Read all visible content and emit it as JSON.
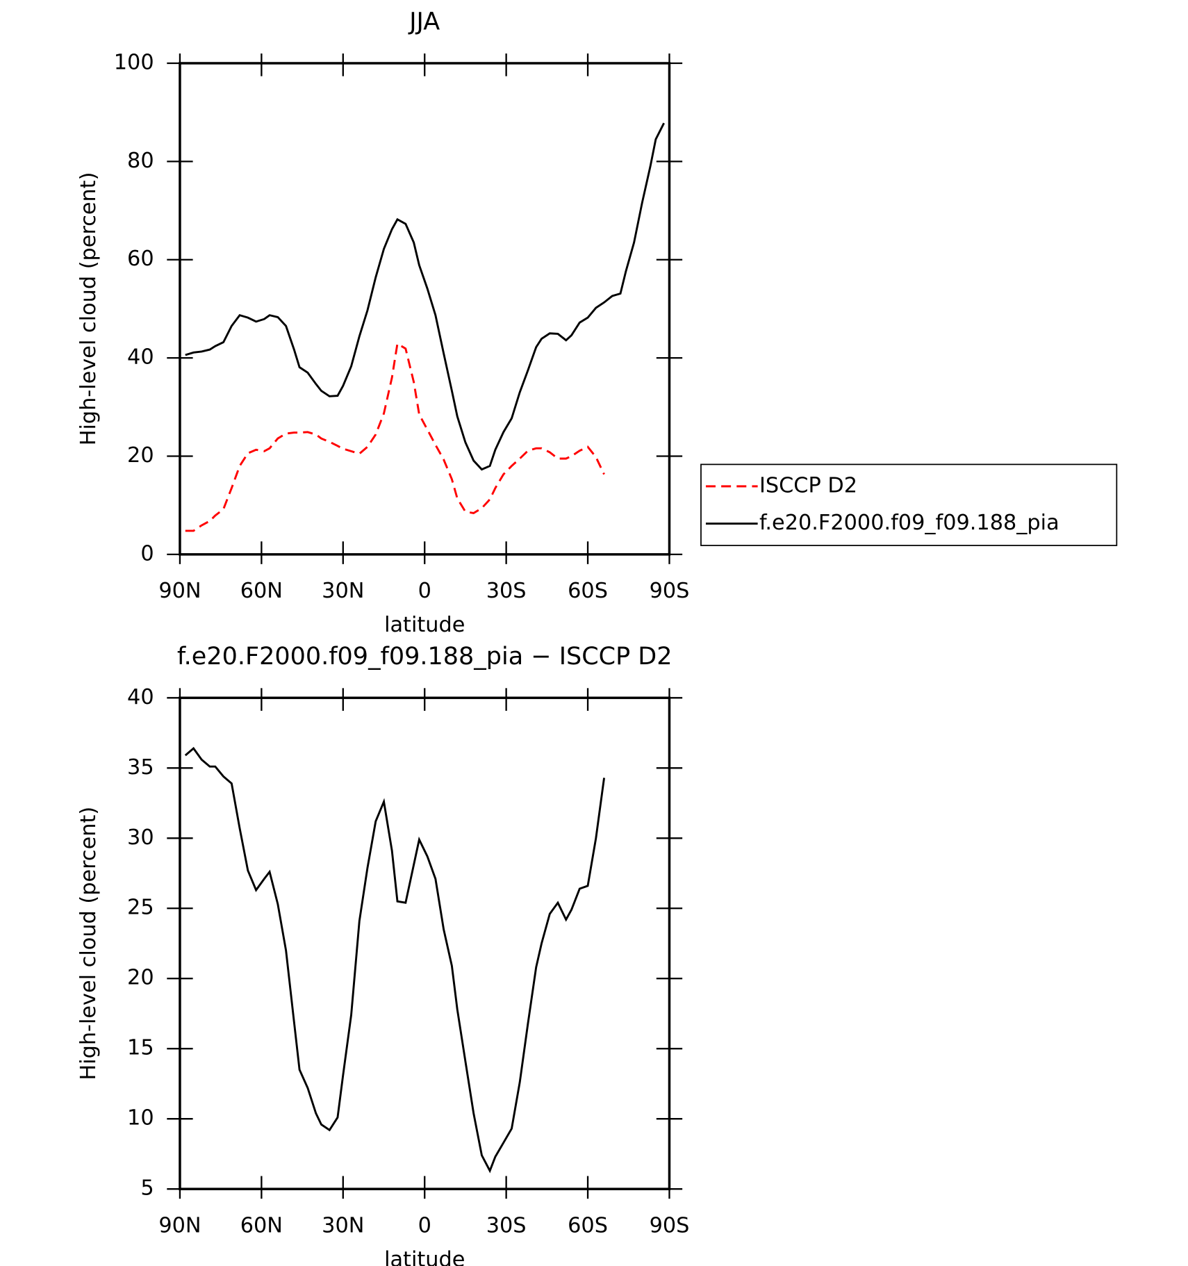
{
  "chart_data": [
    {
      "type": "line",
      "title": "JJA",
      "xlabel": "latitude",
      "ylabel": "High-level cloud (percent)",
      "x": [
        88,
        85,
        82,
        79,
        77,
        74,
        71,
        68,
        65,
        62,
        59,
        57,
        54,
        51,
        48,
        46,
        43,
        40,
        38,
        35,
        32,
        30,
        27,
        24,
        21,
        18,
        15,
        12,
        10,
        7,
        4,
        2,
        -1,
        -4,
        -7,
        -10,
        -12,
        -15,
        -18,
        -21,
        -24,
        -26,
        -29,
        -32,
        -35,
        -38,
        -41,
        -43,
        -46,
        -49,
        -52,
        -54,
        -57,
        -60,
        -63,
        -66,
        -69,
        -72,
        -74,
        -77,
        -80,
        -83,
        -85,
        -88
      ],
      "series": [
        {
          "name": "ISCCP D2",
          "color": "#ff0000",
          "dashed": true,
          "values": [
            4.8,
            4.8,
            5.9,
            6.8,
            7.9,
            9.2,
            13.5,
            18.0,
            20.6,
            21.3,
            21.0,
            21.6,
            23.6,
            24.6,
            24.8,
            24.8,
            24.9,
            24.4,
            23.6,
            22.9,
            22.1,
            21.5,
            21.0,
            20.5,
            21.9,
            24.4,
            28.7,
            36.0,
            42.9,
            41.9,
            35.1,
            28.5,
            25.4,
            22.3,
            19.3,
            15.3,
            11.4,
            8.7,
            8.4,
            9.4,
            11.2,
            13.5,
            16.3,
            18.0,
            19.5,
            21.1,
            21.6,
            21.6,
            20.8,
            19.5,
            19.5,
            20.0,
            21.1,
            21.9,
            19.8,
            16.3,
            null,
            null,
            null,
            null,
            null,
            null,
            null,
            null
          ]
        },
        {
          "name": "f.e20.F2000.f09_f09.188_pia",
          "color": "#000000",
          "dashed": false,
          "values": [
            40.6,
            41.1,
            41.3,
            41.7,
            42.4,
            43.2,
            46.5,
            48.7,
            48.2,
            47.4,
            47.9,
            48.7,
            48.3,
            46.5,
            41.7,
            38.1,
            37.0,
            34.7,
            33.3,
            32.2,
            32.3,
            34.3,
            38.3,
            44.4,
            49.7,
            56.4,
            62.2,
            66.2,
            68.2,
            67.3,
            63.5,
            58.9,
            54.1,
            48.7,
            40.9,
            33.3,
            28.1,
            22.8,
            19.1,
            17.3,
            18.0,
            21.3,
            24.9,
            27.7,
            33.0,
            37.5,
            42.2,
            43.9,
            45.0,
            44.9,
            43.6,
            44.6,
            47.2,
            48.2,
            50.2,
            51.3,
            52.6,
            53.1,
            57.6,
            63.5,
            71.6,
            79.0,
            84.5,
            87.8
          ]
        }
      ],
      "xlim": [
        90,
        -90
      ],
      "xticks": [
        {
          "value": 90,
          "label": "90N"
        },
        {
          "value": 60,
          "label": "60N"
        },
        {
          "value": 30,
          "label": "30N"
        },
        0,
        {
          "value": -30,
          "label": "30S"
        },
        {
          "value": -60,
          "label": "60S"
        },
        {
          "value": -90,
          "label": "90S"
        }
      ],
      "ylim": [
        0,
        100
      ],
      "yticks": [
        0,
        20,
        40,
        60,
        80,
        100
      ],
      "legend": "right"
    },
    {
      "type": "line",
      "title": "f.e20.F2000.f09_f09.188_pia − ISCCP D2",
      "xlabel": "latitude",
      "ylabel": "High-level cloud (percent)",
      "x": [
        88,
        85,
        82,
        79,
        77,
        74,
        71,
        68,
        65,
        62,
        59,
        57,
        54,
        51,
        48,
        46,
        43,
        40,
        38,
        35,
        32,
        30,
        27,
        24,
        21,
        18,
        15,
        12,
        10,
        7,
        4,
        2,
        -1,
        -4,
        -7,
        -10,
        -12,
        -15,
        -18,
        -21,
        -24,
        -26,
        -29,
        -32,
        -35,
        -38,
        -41,
        -43,
        -46,
        -49,
        -52,
        -54,
        -57,
        -60,
        -63,
        -66
      ],
      "values": [
        35.9,
        36.4,
        35.6,
        35.1,
        35.1,
        34.4,
        33.9,
        30.7,
        27.7,
        26.3,
        27.1,
        27.6,
        25.3,
        22.0,
        16.9,
        13.5,
        12.2,
        10.4,
        9.6,
        9.2,
        10.1,
        13.1,
        17.4,
        24.1,
        27.9,
        31.2,
        32.6,
        29.1,
        25.5,
        25.4,
        28.1,
        29.9,
        28.7,
        27.1,
        23.5,
        20.9,
        17.8,
        14.1,
        10.4,
        7.4,
        6.3,
        7.3,
        8.3,
        9.3,
        12.6,
        16.8,
        20.8,
        22.5,
        24.6,
        25.4,
        24.2,
        24.9,
        26.4,
        26.6,
        30.0,
        34.3
      ],
      "color": "#000000",
      "xlim": [
        90,
        -90
      ],
      "xticks": [
        {
          "value": 90,
          "label": "90N"
        },
        {
          "value": 60,
          "label": "60N"
        },
        {
          "value": 30,
          "label": "30N"
        },
        0,
        {
          "value": -30,
          "label": "30S"
        },
        {
          "value": -60,
          "label": "60S"
        },
        {
          "value": -90,
          "label": "90S"
        }
      ],
      "ylim": [
        5,
        40
      ],
      "yticks": [
        5,
        10,
        15,
        20,
        25,
        30,
        35,
        40
      ]
    }
  ]
}
